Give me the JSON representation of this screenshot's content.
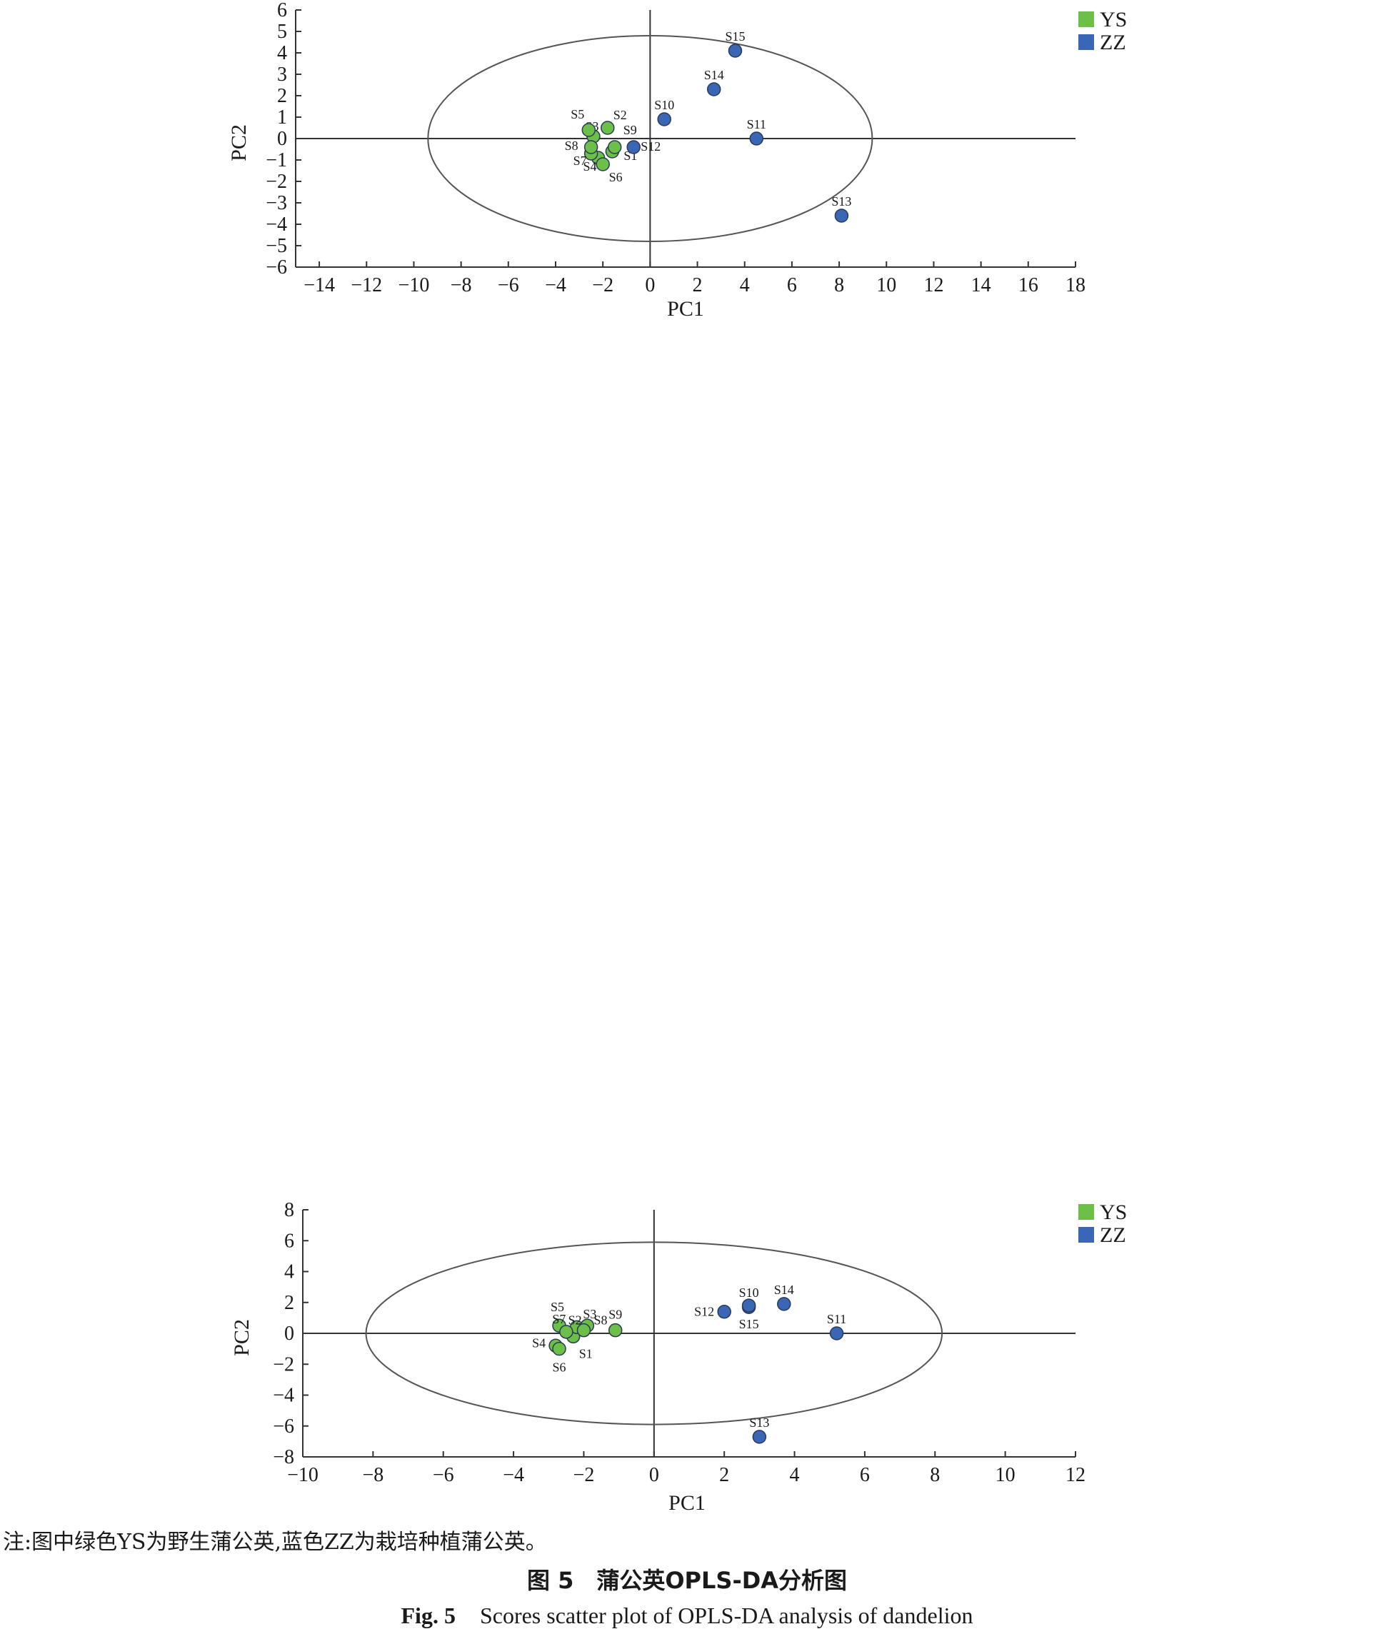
{
  "note": "注:图中绿色YS为野生蒲公英,蓝色ZZ为栽培种植蒲公英。",
  "caption_cn": "图 5　蒲公英OPLS-DA分析图",
  "caption_en_label": "Fig. 5",
  "caption_en_text": "Scores scatter plot of OPLS-DA analysis of dandelion",
  "colors": {
    "YS": "#6cc04a",
    "ZZ": "#3a66b6",
    "axis": "#333333",
    "ellipse": "#555555"
  },
  "chart_data": [
    {
      "type": "scatter",
      "xlabel": "PC1",
      "ylabel": "PC2",
      "xlim": [
        -15,
        18
      ],
      "ylim": [
        -6,
        6
      ],
      "xticks": [
        -14,
        -12,
        -10,
        -8,
        -6,
        -4,
        -2,
        0,
        2,
        4,
        6,
        8,
        10,
        12,
        14,
        16,
        18
      ],
      "yticks": [
        -6,
        -5,
        -4,
        -3,
        -2,
        -1,
        0,
        1,
        2,
        3,
        4,
        5,
        6
      ],
      "legend": {
        "position": "top-right",
        "entries": [
          "YS",
          "ZZ"
        ]
      },
      "ellipse": {
        "cx": 0,
        "cy": 0,
        "rx": 9.4,
        "ry": 4.8
      },
      "series": [
        {
          "name": "YS",
          "points": [
            {
              "label": "S1",
              "x": -1.6,
              "y": -0.6
            },
            {
              "label": "S2",
              "x": -1.8,
              "y": 0.5
            },
            {
              "label": "S3",
              "x": -2.4,
              "y": 0.1
            },
            {
              "label": "S4",
              "x": -2.2,
              "y": -0.9
            },
            {
              "label": "S5",
              "x": -2.6,
              "y": 0.4
            },
            {
              "label": "S6",
              "x": -2.0,
              "y": -1.2
            },
            {
              "label": "S7",
              "x": -2.5,
              "y": -0.7
            },
            {
              "label": "S8",
              "x": -2.5,
              "y": -0.4
            },
            {
              "label": "S9",
              "x": -1.5,
              "y": -0.4
            }
          ]
        },
        {
          "name": "ZZ",
          "points": [
            {
              "label": "S10",
              "x": 0.6,
              "y": 0.9
            },
            {
              "label": "S11",
              "x": 4.5,
              "y": 0.0
            },
            {
              "label": "S12",
              "x": -0.7,
              "y": -0.4
            },
            {
              "label": "S13",
              "x": 8.1,
              "y": -3.6
            },
            {
              "label": "S14",
              "x": 2.7,
              "y": 2.3
            },
            {
              "label": "S15",
              "x": 3.6,
              "y": 4.1
            }
          ]
        }
      ]
    },
    {
      "type": "scatter",
      "xlabel": "PC1",
      "ylabel": "PC2",
      "xlim": [
        -10,
        12
      ],
      "ylim": [
        -8,
        8
      ],
      "xticks": [
        -10,
        -8,
        -6,
        -4,
        -2,
        0,
        2,
        4,
        6,
        8,
        10,
        12
      ],
      "yticks": [
        -8,
        -6,
        -4,
        -2,
        0,
        2,
        4,
        6,
        8
      ],
      "legend": {
        "position": "top-right",
        "entries": [
          "YS",
          "ZZ"
        ]
      },
      "ellipse": {
        "cx": 0,
        "cy": 0,
        "rx": 8.2,
        "ry": 5.9
      },
      "series": [
        {
          "name": "YS",
          "points": [
            {
              "label": "S1",
              "x": -2.3,
              "y": -0.2
            },
            {
              "label": "S2",
              "x": -2.2,
              "y": 0.4
            },
            {
              "label": "S3",
              "x": -1.9,
              "y": 0.5
            },
            {
              "label": "S4",
              "x": -2.8,
              "y": -0.8
            },
            {
              "label": "S5",
              "x": -2.7,
              "y": 0.5
            },
            {
              "label": "S6",
              "x": -2.7,
              "y": -1.0
            },
            {
              "label": "S7",
              "x": -2.5,
              "y": 0.1
            },
            {
              "label": "S8",
              "x": -2.0,
              "y": 0.2
            },
            {
              "label": "S9",
              "x": -1.1,
              "y": 0.2
            }
          ]
        },
        {
          "name": "ZZ",
          "points": [
            {
              "label": "S10",
              "x": 2.7,
              "y": 1.7
            },
            {
              "label": "S11",
              "x": 5.2,
              "y": 0.0
            },
            {
              "label": "S12",
              "x": 2.0,
              "y": 1.4
            },
            {
              "label": "S13",
              "x": 3.0,
              "y": -6.7
            },
            {
              "label": "S14",
              "x": 3.7,
              "y": 1.9
            },
            {
              "label": "S15",
              "x": 2.7,
              "y": 1.8
            }
          ]
        }
      ]
    }
  ]
}
